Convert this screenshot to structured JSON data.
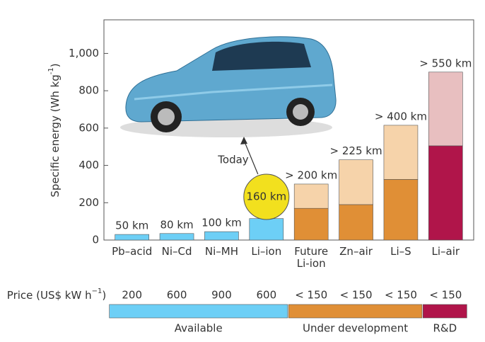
{
  "chart_data": {
    "type": "bar",
    "stacked": true,
    "ylabel": {
      "text": "Specific energy (Wh kg",
      "sup": "-1",
      "end": ")"
    },
    "categories": [
      "Pb–acid",
      "Ni–Cd",
      "Ni–MH",
      "Li–ion",
      "Future Li-ion",
      "Zn–air",
      "Li–S",
      "Li–air"
    ],
    "series": [
      {
        "values": [
          30,
          35,
          45,
          115,
          170,
          190,
          325,
          505
        ],
        "colors": [
          "#6dcff6",
          "#6dcff6",
          "#6dcff6",
          "#6dcff6",
          "#e08f36",
          "#e08f36",
          "#e08f36",
          "#b0154a"
        ]
      },
      {
        "values": [
          null,
          null,
          null,
          null,
          130,
          240,
          290,
          395
        ],
        "colors": [
          null,
          null,
          null,
          null,
          "#f6d3aa",
          "#f6d3aa",
          "#f6d3aa",
          "#e8bfc0"
        ]
      }
    ],
    "range_labels": [
      "50 km",
      "80 km",
      "100 km",
      "160 km",
      "> 200 km",
      "> 225 km",
      "> 400 km",
      "> 550 km"
    ],
    "annotation": "Today",
    "ylim": [
      0,
      1180
    ],
    "yticks": [
      0,
      200,
      400,
      600,
      800,
      {
        "value": 1000,
        "label": "1,000"
      }
    ],
    "price_label": {
      "text": "Price (US$ kW h",
      "sup": "−1",
      "end": ")"
    },
    "prices": [
      "200",
      "600",
      "900",
      "600",
      "< 150",
      "< 150",
      "< 150",
      "< 150"
    ],
    "groups": [
      {
        "label": "Available",
        "color": "#6dcff6",
        "count": 4
      },
      {
        "label": "Under development",
        "color": "#e08f36",
        "count": 3
      },
      {
        "label": "R&D",
        "color": "#b0154a",
        "count": 1
      }
    ]
  }
}
